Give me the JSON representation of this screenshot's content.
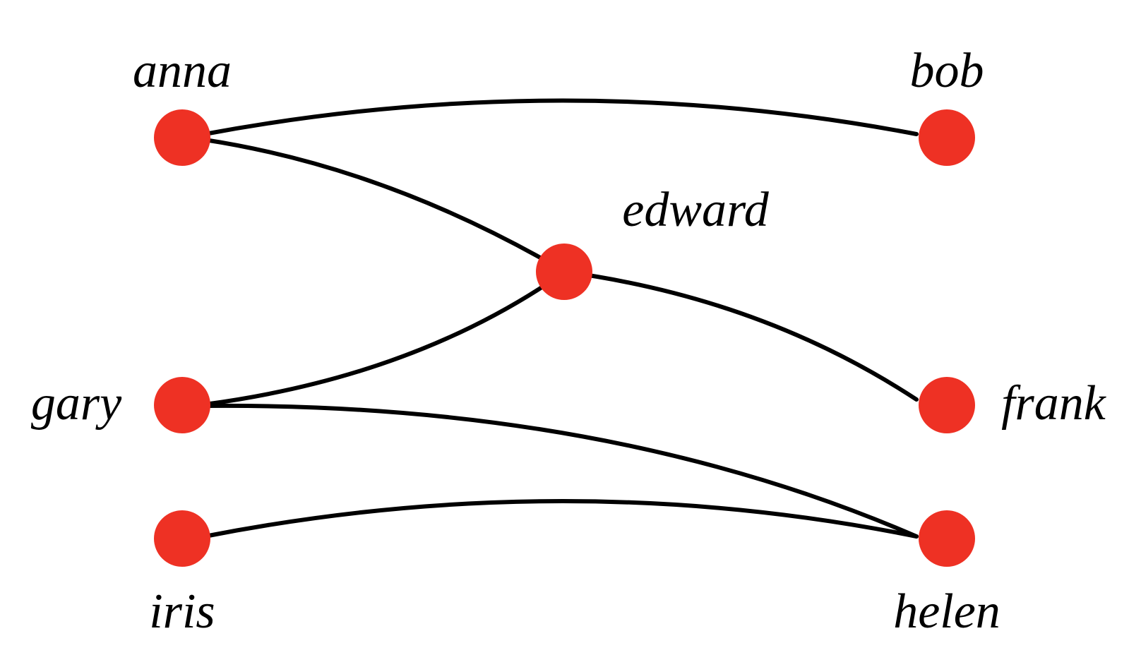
{
  "graph": {
    "node_color": "#EE3124",
    "edge_color": "#000000",
    "nodes": [
      {
        "id": "anna",
        "label": "anna"
      },
      {
        "id": "bob",
        "label": "bob"
      },
      {
        "id": "edward",
        "label": "edward"
      },
      {
        "id": "gary",
        "label": "gary"
      },
      {
        "id": "frank",
        "label": "frank"
      },
      {
        "id": "iris",
        "label": "iris"
      },
      {
        "id": "helen",
        "label": "helen"
      }
    ],
    "edges": [
      {
        "from": "anna",
        "to": "bob"
      },
      {
        "from": "anna",
        "to": "edward"
      },
      {
        "from": "edward",
        "to": "gary"
      },
      {
        "from": "edward",
        "to": "frank"
      },
      {
        "from": "gary",
        "to": "helen"
      },
      {
        "from": "iris",
        "to": "helen"
      }
    ]
  }
}
